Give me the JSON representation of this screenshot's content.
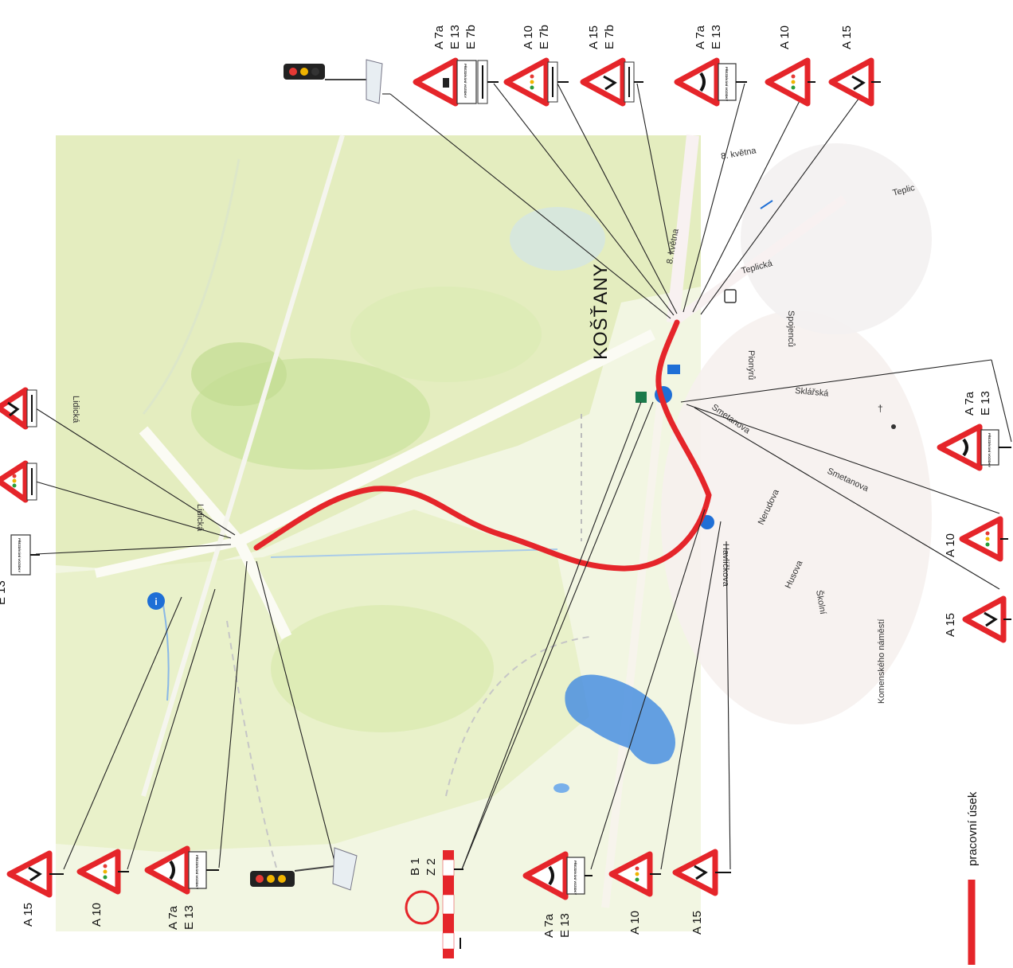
{
  "map": {
    "town_label": "KOŠŤANY",
    "street_labels": [
      "Lidická",
      "Lidická",
      "8. května",
      "8. května",
      "Teplická",
      "Teplic",
      "Spojenců",
      "Pionýrů",
      "Sklářská",
      "Smetanova",
      "Smetanova",
      "Nerudova",
      "Husova",
      "Školní",
      "Komenského náměstí",
      "Havlíčkova",
      "Husova"
    ]
  },
  "legend": {
    "work_section_label": "pracovní úsek",
    "work_section_color": "#e5252a"
  },
  "signs": {
    "panel_text": "PŘEZDÍVÁNÍ VOZIDKY",
    "groups": [
      {
        "name": "top-1",
        "codes": [
          "A 7a",
          "E 13",
          "E 7b"
        ]
      },
      {
        "name": "top-2",
        "codes": [
          "A 10",
          "E 7b"
        ]
      },
      {
        "name": "top-3",
        "codes": [
          "A 15",
          "E 7b"
        ]
      },
      {
        "name": "top-4",
        "codes": [
          "A 7a",
          "E 13"
        ]
      },
      {
        "name": "top-5",
        "codes": [
          "A 10"
        ]
      },
      {
        "name": "top-6",
        "codes": [
          "A 15"
        ]
      },
      {
        "name": "right-1",
        "codes": [
          "A 7a",
          "E 13"
        ]
      },
      {
        "name": "right-2",
        "codes": [
          "A 10"
        ]
      },
      {
        "name": "right-3",
        "codes": [
          "A 15"
        ]
      },
      {
        "name": "left-1",
        "codes": [
          "A 15"
        ]
      },
      {
        "name": "left-2",
        "codes": [
          "A 10"
        ]
      },
      {
        "name": "left-3",
        "codes": [
          "A 7a",
          "E 13"
        ]
      },
      {
        "name": "left-top-3",
        "codes": [
          "E 13"
        ]
      },
      {
        "name": "bottom-1",
        "codes": [
          "A 7a",
          "E 13"
        ]
      },
      {
        "name": "bottom-2",
        "codes": [
          "A 10"
        ]
      },
      {
        "name": "bottom-3",
        "codes": [
          "A 15"
        ]
      },
      {
        "name": "barrier",
        "codes": [
          "B 1",
          "Z 2"
        ]
      }
    ]
  },
  "colors": {
    "sign_red": "#e5252a",
    "water": "#4a8fe0",
    "land_green": "#e7f0c6",
    "forest_green": "#c9e0a4"
  }
}
